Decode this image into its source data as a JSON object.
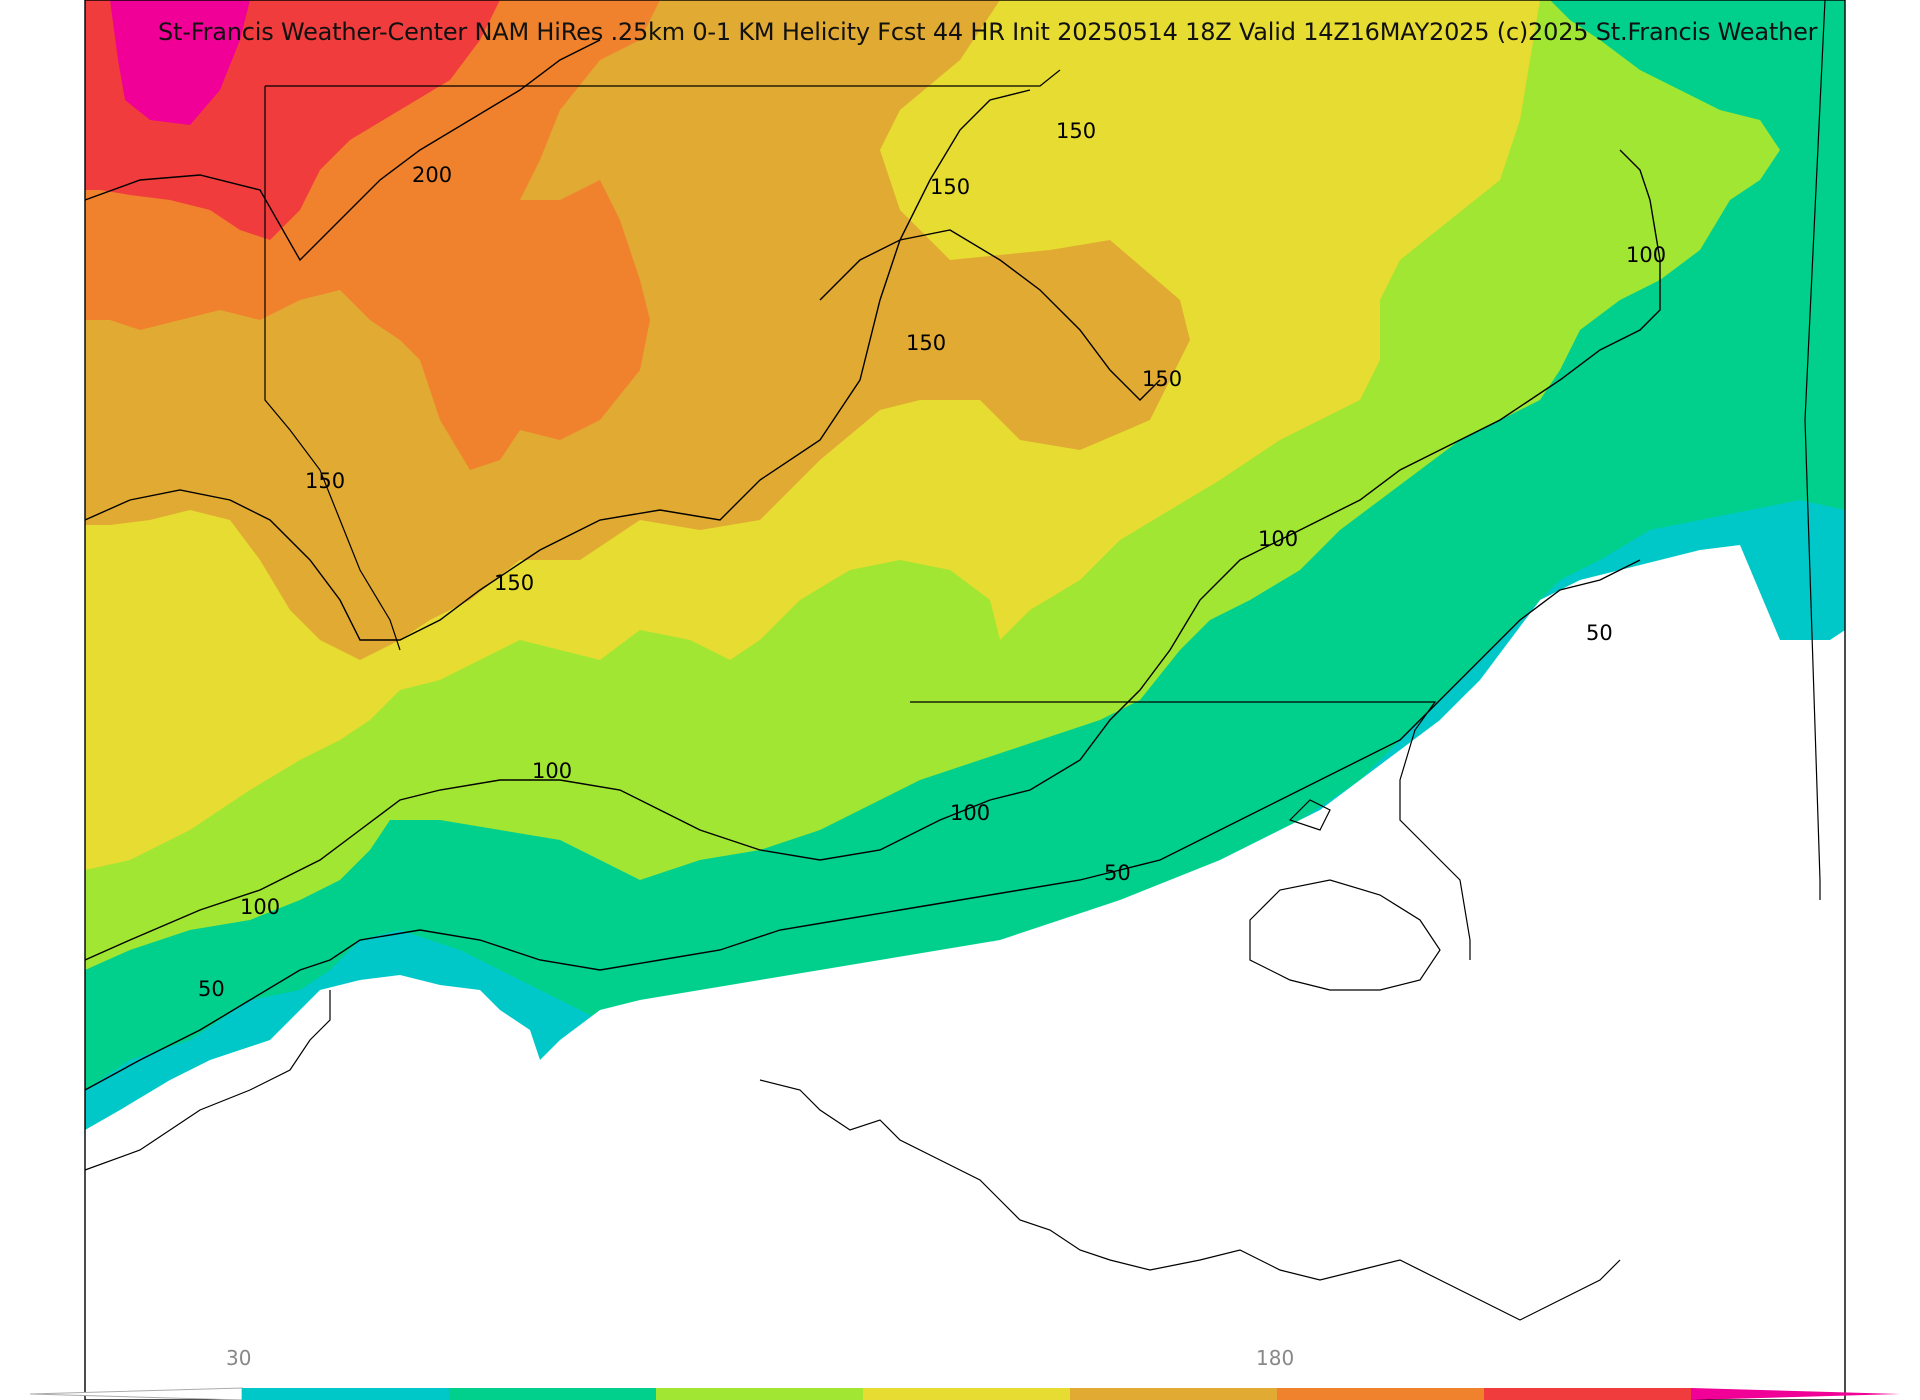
{
  "header": {
    "title": "St-Francis Weather-Center NAM HiRes .25km 0-1 KM Helicity Fcst 44 HR Init 20250514 18Z  Valid 14Z16MAY2025   (c)2025 St.Francis Weather"
  },
  "colorbar": {
    "tick_labels": [
      "30",
      "180"
    ],
    "colors": [
      "#00c8c8",
      "#00d08c",
      "#a0e632",
      "#e6dc32",
      "#e1aa32",
      "#f0822d",
      "#f03c3c",
      "#f00096"
    ]
  },
  "contours": {
    "labels": [
      "200",
      "150",
      "150",
      "150",
      "150",
      "150",
      "150",
      "100",
      "100",
      "100",
      "100",
      "100",
      "50",
      "50",
      "50"
    ]
  }
}
